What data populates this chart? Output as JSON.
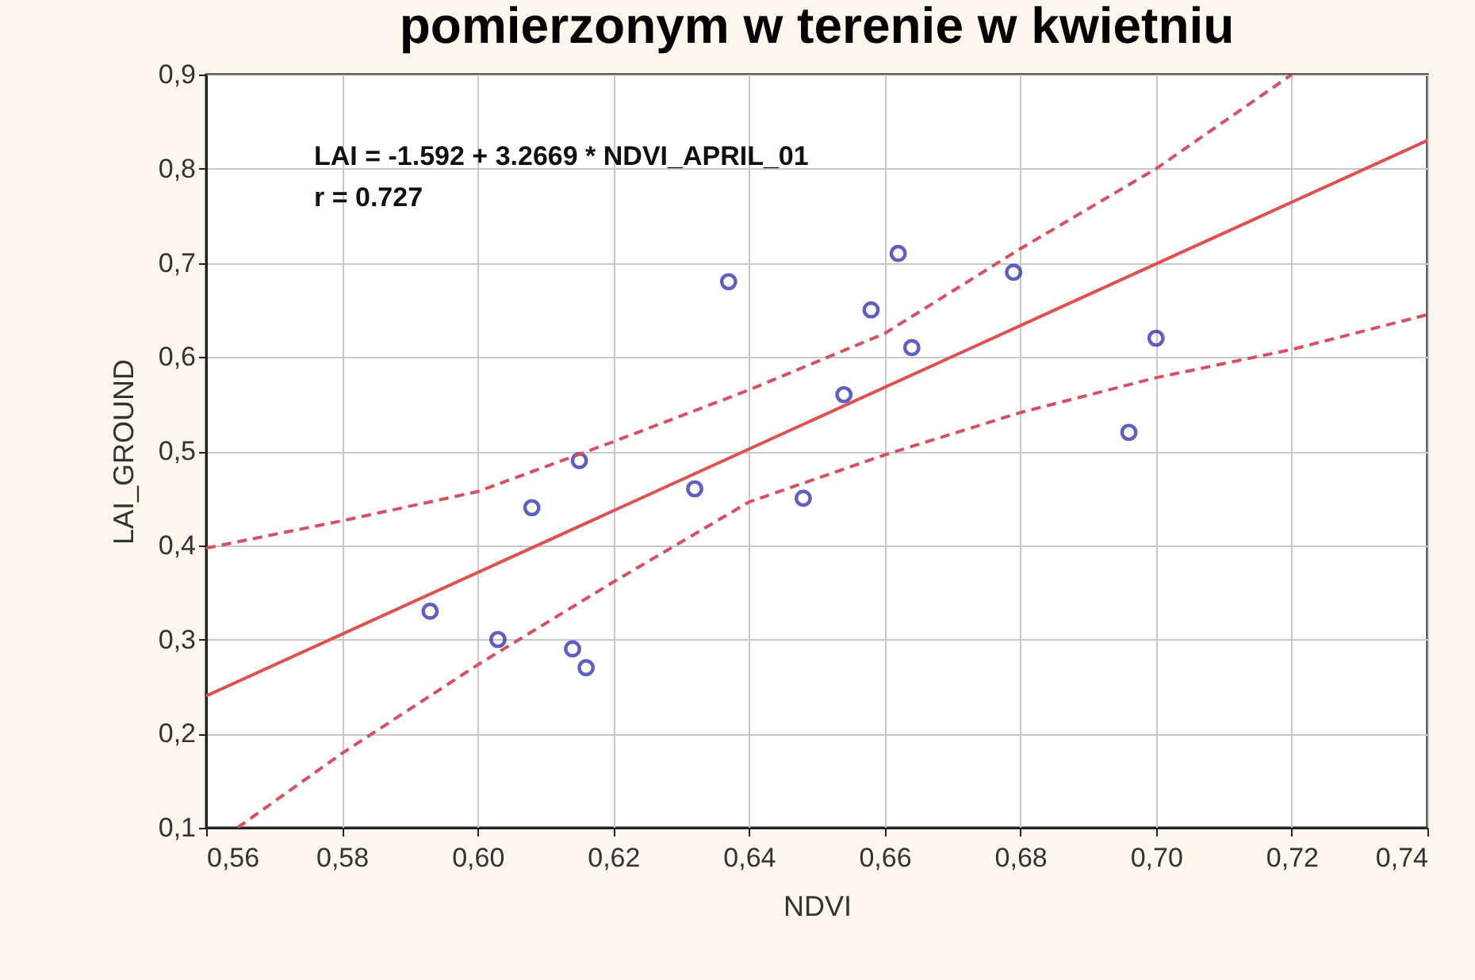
{
  "chart_data": {
    "type": "scatter",
    "title": "pomierzonym w terenie w kwietniu",
    "xlabel": "NDVI",
    "ylabel": "LAI_GROUND",
    "annotations": [
      "LAI = -1.592 + 3.2669 * NDVI_APRIL_01",
      "r = 0.727"
    ],
    "xlim": [
      0.56,
      0.74
    ],
    "ylim": [
      0.1,
      0.9
    ],
    "xticks": [
      {
        "value": 0.56,
        "label": "0,56"
      },
      {
        "value": 0.58,
        "label": "0,58"
      },
      {
        "value": 0.6,
        "label": "0,60"
      },
      {
        "value": 0.62,
        "label": "0,62"
      },
      {
        "value": 0.64,
        "label": "0,64"
      },
      {
        "value": 0.66,
        "label": "0,66"
      },
      {
        "value": 0.68,
        "label": "0,68"
      },
      {
        "value": 0.7,
        "label": "0,70"
      },
      {
        "value": 0.72,
        "label": "0,72"
      },
      {
        "value": 0.74,
        "label": "0,74"
      }
    ],
    "yticks": [
      {
        "value": 0.1,
        "label": "0,1"
      },
      {
        "value": 0.2,
        "label": "0,2"
      },
      {
        "value": 0.3,
        "label": "0,3"
      },
      {
        "value": 0.4,
        "label": "0,4"
      },
      {
        "value": 0.5,
        "label": "0,5"
      },
      {
        "value": 0.6,
        "label": "0,6"
      },
      {
        "value": 0.7,
        "label": "0,7"
      },
      {
        "value": 0.8,
        "label": "0,8"
      },
      {
        "value": 0.9,
        "label": "0,9"
      }
    ],
    "grid": true,
    "series": [
      {
        "marker": "circle",
        "color": "#1c1ca8",
        "x": [
          0.593,
          0.603,
          0.614,
          0.616,
          0.608,
          0.615,
          0.632,
          0.648,
          0.637,
          0.654,
          0.658,
          0.662,
          0.664,
          0.679,
          0.696,
          0.7
        ],
        "values": [
          0.33,
          0.3,
          0.29,
          0.27,
          0.44,
          0.49,
          0.46,
          0.45,
          0.68,
          0.56,
          0.65,
          0.71,
          0.61,
          0.69,
          0.52,
          0.62
        ]
      },
      {
        "type": "line",
        "marker": "none",
        "line_style": "solid",
        "color": "#e05050",
        "x": [
          0.56,
          0.74
        ],
        "values": [
          0.24,
          0.83
        ]
      },
      {
        "type": "line",
        "marker": "none",
        "line_style": "dashed",
        "color": "#d85060",
        "x": [
          0.56,
          0.58,
          0.6,
          0.62,
          0.64,
          0.66,
          0.68,
          0.7,
          0.72
        ],
        "values": [
          0.397,
          0.426,
          0.457,
          0.51,
          0.565,
          0.625,
          0.715,
          0.8,
          0.9
        ]
      },
      {
        "type": "line",
        "marker": "none",
        "line_style": "dashed",
        "color": "#d85060",
        "x": [
          0.5646,
          0.58,
          0.6,
          0.62,
          0.64,
          0.66,
          0.68,
          0.7,
          0.72,
          0.74
        ],
        "values": [
          0.1,
          0.179,
          0.273,
          0.361,
          0.446,
          0.496,
          0.541,
          0.578,
          0.608,
          0.645
        ]
      }
    ]
  }
}
